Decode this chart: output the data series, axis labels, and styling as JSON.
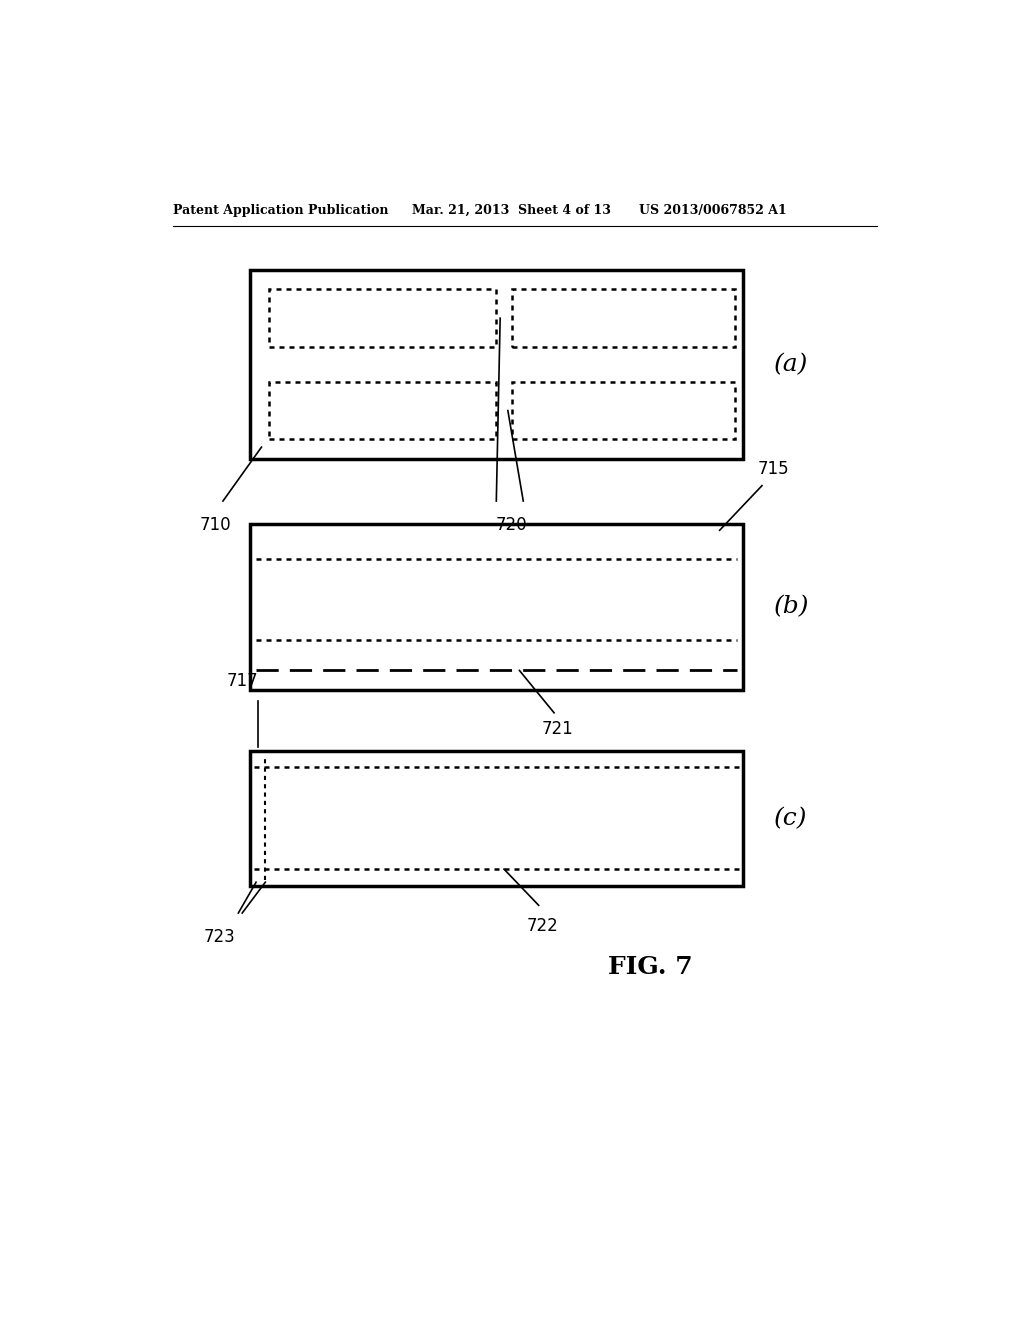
{
  "bg_color": "#ffffff",
  "header_left": "Patent Application Publication",
  "header_mid": "Mar. 21, 2013  Sheet 4 of 13",
  "header_right": "US 2013/0067852 A1",
  "fig_label": "FIG. 7",
  "fig_a_label": "(a)",
  "fig_b_label": "(b)",
  "fig_c_label": "(c)",
  "label_710": "710",
  "label_720": "720",
  "label_715": "715",
  "label_721": "721",
  "label_717": "717",
  "label_722": "722",
  "label_723": "723"
}
